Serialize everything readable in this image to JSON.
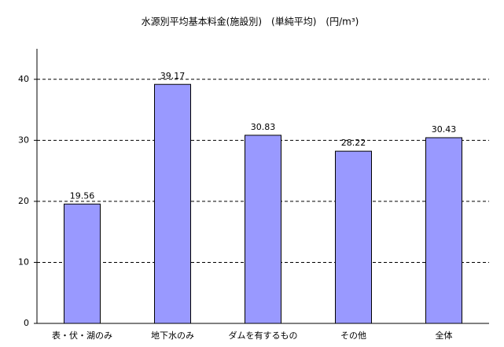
{
  "chart_data": {
    "type": "bar",
    "title": "水源別平均基本料金(施設別)　(単純平均)　(円/m³)",
    "categories": [
      "表・伏・湖のみ",
      "地下水のみ",
      "ダムを有するもの",
      "その他",
      "全体"
    ],
    "values": [
      19.56,
      39.17,
      30.83,
      28.22,
      30.43
    ],
    "color": "#9999ff",
    "ylim": [
      0,
      45
    ],
    "yticks": [
      0,
      10,
      20,
      30,
      40
    ],
    "grid": true
  }
}
